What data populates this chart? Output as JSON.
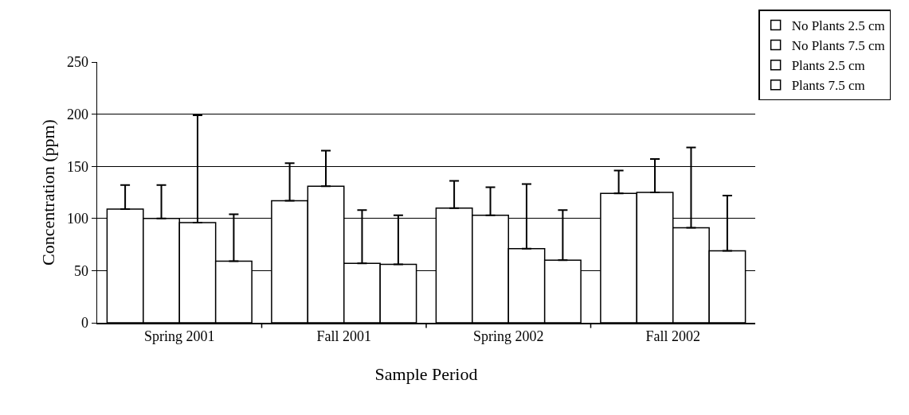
{
  "chart_data": {
    "type": "bar",
    "xlabel": "Sample Period",
    "ylabel": "Concentration (ppm)",
    "categories": [
      "Spring 2001",
      "Fall 2001",
      "Spring 2002",
      "Fall 2002"
    ],
    "series": [
      {
        "name": "No Plants 2.5 cm",
        "color": "#ffffff",
        "values": [
          109,
          117,
          110,
          124
        ],
        "errors": [
          [
            109,
            132
          ],
          [
            117,
            153
          ],
          [
            110,
            136
          ],
          [
            124,
            146
          ]
        ]
      },
      {
        "name": "No Plants 7.5 cm",
        "color": "#ffffff",
        "values": [
          100,
          131,
          103,
          125
        ],
        "errors": [
          [
            100,
            132
          ],
          [
            131,
            165
          ],
          [
            103,
            130
          ],
          [
            125,
            157
          ]
        ]
      },
      {
        "name": "Plants 2.5 cm",
        "color": "#ffffff",
        "values": [
          96,
          57,
          71,
          91
        ],
        "errors": [
          [
            96,
            199
          ],
          [
            57,
            108
          ],
          [
            71,
            133
          ],
          [
            91,
            168
          ]
        ]
      },
      {
        "name": "Plants 7.5 cm",
        "color": "#ffffff",
        "values": [
          59,
          56,
          60,
          69
        ],
        "errors": [
          [
            59,
            104
          ],
          [
            56,
            103
          ],
          [
            60,
            108
          ],
          [
            69,
            122
          ]
        ]
      }
    ],
    "ylim": [
      0,
      250
    ],
    "yticks": [
      0,
      50,
      100,
      150,
      200,
      250
    ],
    "grid": "y",
    "legend": "top right"
  }
}
